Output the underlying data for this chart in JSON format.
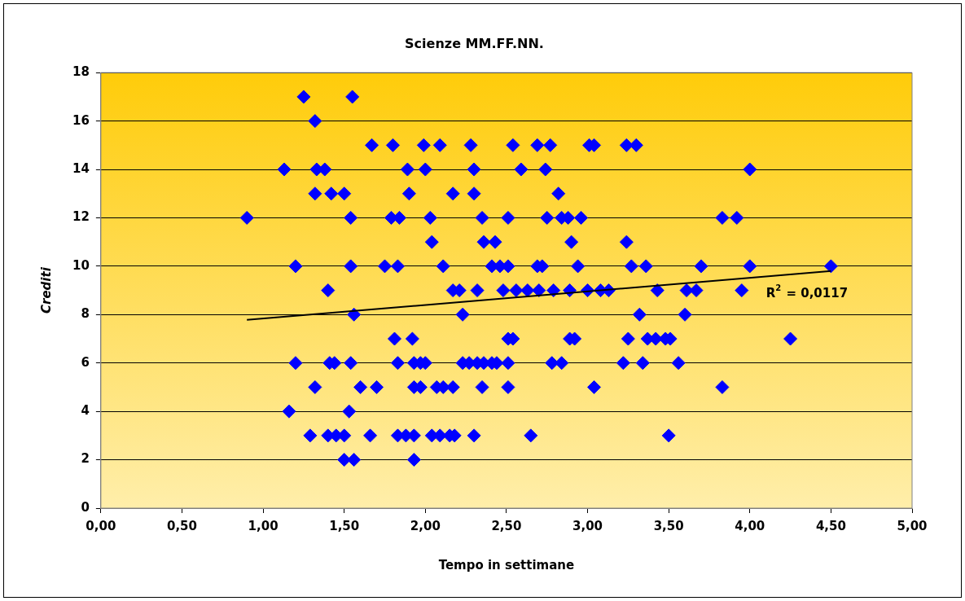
{
  "chart_data": {
    "type": "scatter",
    "title": "Scienze MM.FF.NN.",
    "xlabel": "Tempo in settimane",
    "ylabel": "Crediti",
    "xlim": [
      0,
      5
    ],
    "xticks": [
      {
        "value": 0,
        "label": "0,00"
      },
      {
        "value": 0.5,
        "label": "0,50"
      },
      {
        "value": 1,
        "label": "1,00"
      },
      {
        "value": 1.5,
        "label": "1,50"
      },
      {
        "value": 2,
        "label": "2,00"
      },
      {
        "value": 2.5,
        "label": "2,50"
      },
      {
        "value": 3,
        "label": "3,00"
      },
      {
        "value": 3.5,
        "label": "3,50"
      },
      {
        "value": 4,
        "label": "4,00"
      },
      {
        "value": 4.5,
        "label": "4,50"
      },
      {
        "value": 5,
        "label": "5,00"
      }
    ],
    "ylim": [
      0,
      18
    ],
    "yticks": [
      0,
      2,
      4,
      6,
      8,
      10,
      12,
      14,
      16,
      18
    ],
    "grid": "y",
    "legend": false,
    "marker": "diamond",
    "annotations": [
      "R$^{2}$ = 0,0117"
    ],
    "series": [
      {
        "color": "#0000ff",
        "x": [
          1.25,
          1.55,
          1.32,
          1.67,
          1.8,
          1.99,
          2.09,
          2.28,
          2.54,
          2.69,
          2.77,
          3.01,
          3.04,
          3.24,
          3.3,
          1.13,
          1.33,
          1.38,
          1.89,
          2.0,
          2.3,
          2.59,
          2.74,
          4.0,
          1.32,
          1.42,
          1.5,
          1.9,
          2.17,
          2.3,
          2.82,
          0.9,
          1.54,
          1.79,
          1.84,
          2.03,
          2.35,
          2.51,
          2.75,
          2.84,
          2.88,
          2.96,
          3.83,
          3.92,
          2.04,
          2.36,
          2.43,
          2.9,
          3.24,
          1.2,
          1.54,
          1.75,
          1.83,
          2.11,
          2.41,
          2.46,
          2.51,
          2.69,
          2.72,
          2.94,
          3.27,
          3.36,
          3.7,
          4.0,
          4.5,
          1.4,
          2.17,
          2.21,
          2.32,
          2.48,
          2.56,
          2.63,
          2.7,
          2.79,
          2.89,
          3.0,
          3.08,
          3.13,
          3.43,
          3.61,
          3.67,
          3.95,
          1.56,
          2.23,
          3.32,
          3.6,
          1.81,
          1.92,
          2.51,
          2.54,
          2.89,
          2.92,
          3.25,
          3.37,
          3.42,
          3.48,
          3.51,
          4.25,
          1.2,
          1.41,
          1.44,
          1.54,
          1.83,
          1.93,
          1.97,
          2.0,
          2.23,
          2.27,
          2.32,
          2.36,
          2.41,
          2.44,
          2.51,
          2.78,
          2.84,
          3.22,
          3.34,
          3.56,
          1.32,
          1.6,
          1.7,
          1.93,
          1.97,
          2.07,
          2.11,
          2.17,
          2.35,
          2.51,
          3.04,
          3.83,
          1.16,
          1.53,
          1.29,
          1.4,
          1.45,
          1.5,
          1.66,
          1.83,
          1.88,
          1.93,
          2.04,
          2.09,
          2.15,
          2.18,
          2.3,
          2.65,
          3.5,
          1.5,
          1.56,
          1.93
        ],
        "values": [
          17,
          17,
          16,
          15,
          15,
          15,
          15,
          15,
          15,
          15,
          15,
          15,
          15,
          15,
          15,
          14,
          14,
          14,
          14,
          14,
          14,
          14,
          14,
          14,
          13,
          13,
          13,
          13,
          13,
          13,
          13,
          12,
          12,
          12,
          12,
          12,
          12,
          12,
          12,
          12,
          12,
          12,
          12,
          12,
          11,
          11,
          11,
          11,
          11,
          10,
          10,
          10,
          10,
          10,
          10,
          10,
          10,
          10,
          10,
          10,
          10,
          10,
          10,
          10,
          10,
          9,
          9,
          9,
          9,
          9,
          9,
          9,
          9,
          9,
          9,
          9,
          9,
          9,
          9,
          9,
          9,
          9,
          8,
          8,
          8,
          8,
          7,
          7,
          7,
          7,
          7,
          7,
          7,
          7,
          7,
          7,
          7,
          7,
          6,
          6,
          6,
          6,
          6,
          6,
          6,
          6,
          6,
          6,
          6,
          6,
          6,
          6,
          6,
          6,
          6,
          6,
          6,
          6,
          5,
          5,
          5,
          5,
          5,
          5,
          5,
          5,
          5,
          5,
          5,
          5,
          4,
          4,
          3,
          3,
          3,
          3,
          3,
          3,
          3,
          3,
          3,
          3,
          3,
          3,
          3,
          3,
          3,
          2,
          2,
          2
        ]
      },
      {
        "type": "line",
        "color": "#000000",
        "marker": "none",
        "line_style": "solid",
        "x": [
          0.9,
          4.5
        ],
        "values": [
          7.78,
          9.8
        ]
      }
    ]
  }
}
